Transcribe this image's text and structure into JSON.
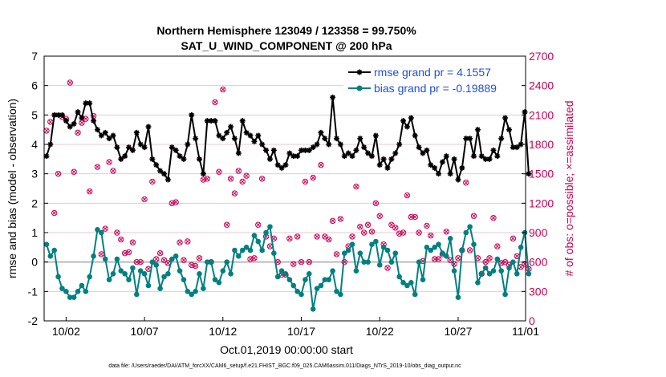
{
  "chart_data": {
    "type": "line",
    "title": "Northern Hemisphere 123049 / 123358 = 99.750%",
    "subtitle": "SAT_U_WIND_COMPONENT @ 200 hPa",
    "xlabel": "Oct.01,2019 00:00:00 start",
    "ylabel": "rmse and bias (model - observation)",
    "ylabel_right": "# of obs: o=possible; ×=assimilated",
    "ylim": [
      -2,
      7
    ],
    "ylim_right": [
      0,
      2700
    ],
    "xlim": [
      0.6,
      31.3
    ],
    "x_ticks": [
      {
        "x": 2,
        "label": "10/02"
      },
      {
        "x": 7,
        "label": "10/07"
      },
      {
        "x": 12,
        "label": "10/12"
      },
      {
        "x": 17,
        "label": "10/17"
      },
      {
        "x": 22,
        "label": "10/22"
      },
      {
        "x": 27,
        "label": "10/27"
      },
      {
        "x": 32,
        "label": "11/01"
      }
    ],
    "y_ticks": [
      "7",
      "6",
      "5",
      "4",
      "3",
      "2",
      "1",
      "0",
      "-1",
      "-2"
    ],
    "y_ticks_right": [
      "2700",
      "2400",
      "2100",
      "1800",
      "1500",
      "1200",
      "900",
      "600",
      "300",
      "0"
    ],
    "legend": [
      "rmse grand pr = 4.1557",
      "bias grand pr = -0.19889"
    ],
    "footer": "data file: /Users/raeder/DAI/ATM_forcXX/CAM6_setup/f.e21.FHIST_BGC.f09_025.CAM6assim.011/Diags_NTrS_2019-10/obs_diag_output.nc",
    "series": [
      {
        "name": "rmse",
        "color": "#000000",
        "x_start": 0.75,
        "x_step": 0.25,
        "values": [
          3.6,
          4.0,
          5.0,
          5.0,
          5.0,
          4.8,
          4.6,
          4.7,
          5.1,
          4.9,
          5.4,
          5.4,
          4.8,
          4.5,
          4.3,
          4.4,
          4.2,
          4.3,
          3.9,
          3.5,
          3.6,
          3.9,
          3.8,
          4.4,
          4.0,
          3.9,
          4.6,
          3.5,
          3.3,
          3.1,
          3.0,
          2.8,
          3.9,
          3.8,
          3.6,
          3.5,
          4.0,
          5.0,
          4.2,
          3.5,
          3.0,
          4.8,
          4.8,
          4.8,
          4.3,
          4.2,
          4.4,
          4.6,
          4.2,
          3.7,
          4.8,
          4.4,
          4.3,
          4.1,
          4.3,
          4.0,
          3.8,
          3.5,
          3.8,
          3.3,
          3.2,
          3.3,
          3.7,
          3.6,
          3.6,
          3.8,
          3.8,
          3.8,
          3.9,
          4.0,
          4.4,
          4.2,
          4.0,
          5.6,
          4.2,
          4.0,
          3.6,
          3.7,
          3.6,
          3.8,
          4.2,
          3.9,
          3.7,
          3.6,
          4.3,
          3.3,
          3.5,
          3.2,
          3.5,
          3.7,
          4.0,
          4.8,
          4.6,
          4.9,
          4.3,
          3.9,
          3.7,
          3.8,
          3.3,
          3.2,
          3.0,
          3.4,
          3.6,
          3.0,
          3.5,
          2.8,
          3.2,
          4.2,
          4.2,
          3.6,
          4.5,
          3.6,
          3.5,
          3.5,
          3.8,
          3.6,
          4.2,
          4.9,
          4.5,
          3.9,
          3.9,
          4.0,
          5.1,
          3.0
        ],
        "markers": "asterisk"
      },
      {
        "name": "bias",
        "color": "#008080",
        "x_start": 0.75,
        "x_step": 0.25,
        "values": [
          0.6,
          0.2,
          0.4,
          -0.5,
          -0.9,
          -1.0,
          -1.2,
          -1.2,
          -1.0,
          -0.8,
          -1.0,
          -0.5,
          0.2,
          1.1,
          1.0,
          0.1,
          -0.6,
          -0.4,
          0.1,
          -0.3,
          -0.4,
          -0.6,
          -0.2,
          -1.1,
          -0.3,
          -0.4,
          -0.8,
          0.0,
          -0.1,
          -0.9,
          -0.5,
          -0.4,
          0.1,
          0.2,
          -0.3,
          -0.6,
          -1.0,
          -1.1,
          -1.0,
          -0.4,
          -0.9,
          0.0,
          0.0,
          -0.6,
          -0.7,
          -0.3,
          0.0,
          -0.4,
          0.4,
          0.2,
          0.4,
          0.5,
          0.4,
          0.9,
          0.7,
          0.4,
          1.0,
          1.2,
          0.3,
          -0.5,
          -0.3,
          -0.4,
          -0.6,
          -0.8,
          -1.0,
          -1.1,
          -0.6,
          -0.4,
          -1.6,
          -0.9,
          -0.8,
          -0.6,
          -0.6,
          -0.3,
          -1.0,
          -1.1,
          0.3,
          0.4,
          0.6,
          -0.3,
          0.3,
          0.0,
          0.0,
          0.6,
          0.7,
          -0.1,
          0.5,
          0.4,
          0.0,
          0.3,
          -0.5,
          -0.7,
          -0.8,
          -0.7,
          -1.1,
          0.0,
          -0.6,
          0.5,
          0.4,
          0.5,
          0.6,
          0.3,
          0.2,
          0.8,
          -0.3,
          -1.2,
          0.4,
          1.0,
          1.2,
          0.6,
          -0.7,
          -0.4,
          -0.2,
          -0.4,
          -0.3,
          0.1,
          -0.3,
          -1.1,
          -0.2,
          0.0,
          -0.4,
          0.5,
          1.0,
          -0.4
        ],
        "markers": "filled-circle"
      }
    ],
    "obs_counts": {
      "color": "#cc0055",
      "x_start": 0.75,
      "x_step": 0.25,
      "values": [
        1940,
        2030,
        1100,
        1500,
        2080,
        2060,
        2430,
        1520,
        1920,
        2020,
        2060,
        1320,
        2090,
        1570,
        680,
        940,
        1620,
        1530,
        900,
        830,
        690,
        700,
        800,
        600,
        600,
        1240,
        530,
        1420,
        630,
        690,
        620,
        590,
        1200,
        1210,
        800,
        620,
        810,
        570,
        560,
        640,
        1440,
        1450,
        600,
        2230,
        1520,
        2360,
        980,
        1450,
        1300,
        1530,
        1420,
        1480,
        630,
        640,
        980,
        1450,
        860,
        760,
        840,
        600,
        470,
        470,
        840,
        580,
        860,
        600,
        1420,
        600,
        1460,
        860,
        1590,
        860,
        830,
        1020,
        680,
        1040,
        600,
        760,
        860,
        1370,
        960,
        900,
        980,
        910,
        1200,
        1070,
        780,
        540,
        980,
        950,
        890,
        900,
        1280,
        1060,
        1060,
        900,
        610,
        970,
        870,
        630,
        630,
        680,
        910,
        620,
        580,
        640,
        720,
        1410,
        720,
        1070,
        640,
        480,
        600,
        640,
        1050,
        760,
        590,
        600,
        570,
        840,
        660,
        550,
        580,
        530
      ]
    }
  }
}
